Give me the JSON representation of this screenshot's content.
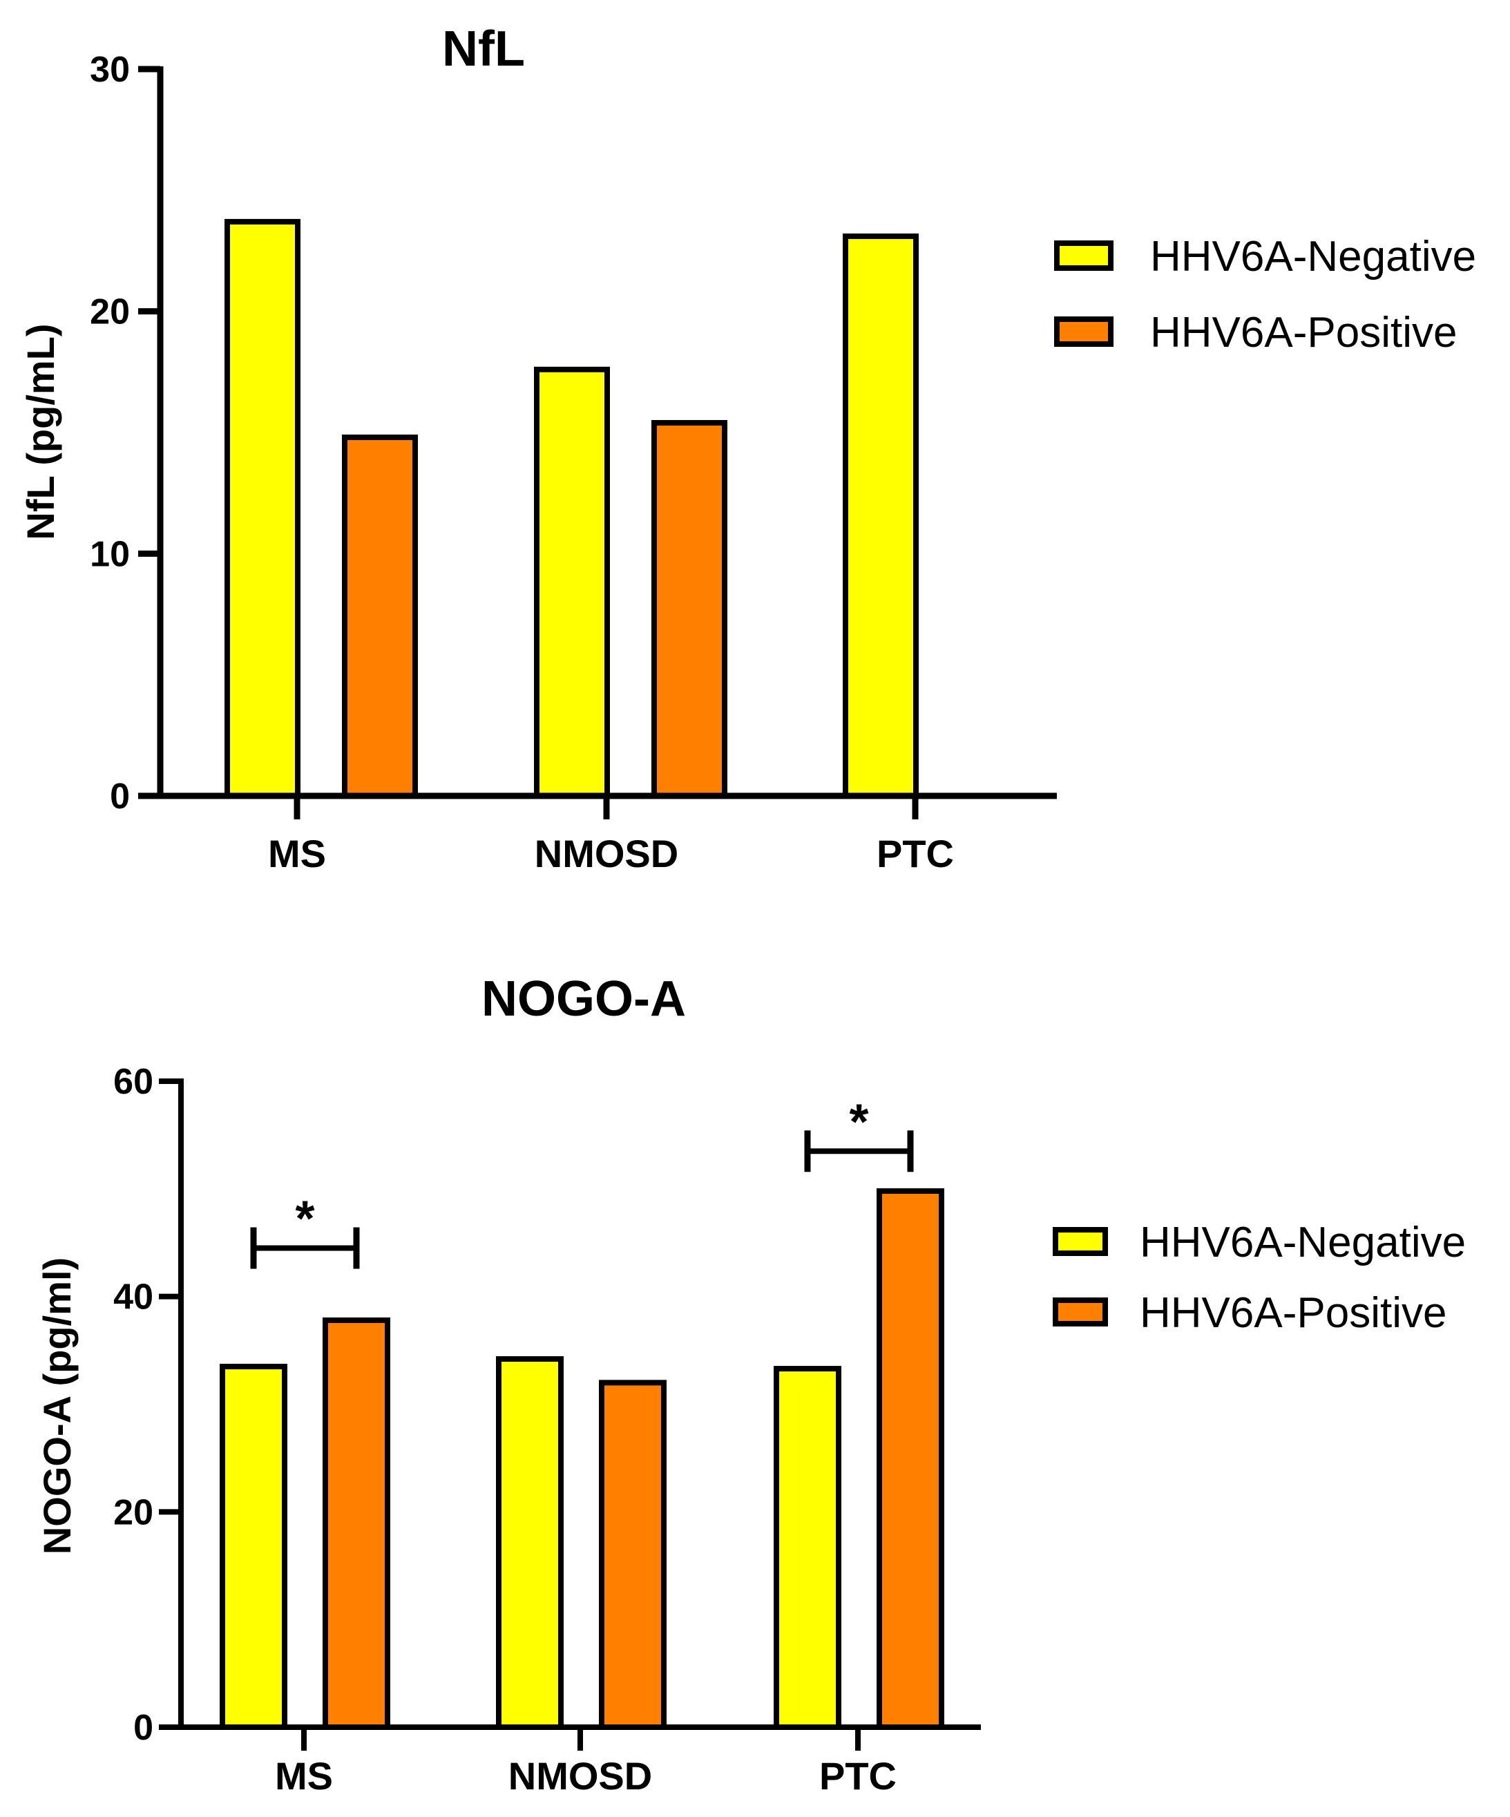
{
  "chart_data": [
    {
      "type": "bar",
      "title": "NfL",
      "xlabel": "",
      "ylabel": "NfL (pg/mL)",
      "ylim": [
        0,
        30
      ],
      "yticks": [
        0,
        10,
        20,
        30
      ],
      "categories": [
        "MS",
        "NMOSD",
        "PTC"
      ],
      "series": [
        {
          "name": "HHV6A-Negative",
          "color": "#FFFF00",
          "values": [
            23.7,
            17.6,
            23.1
          ]
        },
        {
          "name": "HHV6A-Positive",
          "color": "#FF8000",
          "values": [
            14.8,
            15.4,
            null
          ]
        }
      ],
      "legend": "right",
      "significance": []
    },
    {
      "type": "bar",
      "title": "NOGO-A",
      "xlabel": "",
      "ylabel": "NOGO-A (pg/ml)",
      "ylim": [
        0,
        60
      ],
      "yticks": [
        0,
        20,
        40,
        60
      ],
      "categories": [
        "MS",
        "NMOSD",
        "PTC"
      ],
      "series": [
        {
          "name": "HHV6A-Negative",
          "color": "#FFFF00",
          "values": [
            33.5,
            34.2,
            33.3
          ]
        },
        {
          "name": "HHV6A-Positive",
          "color": "#FF8000",
          "values": [
            37.8,
            32.0,
            49.8
          ]
        }
      ],
      "legend": "right",
      "significance": [
        {
          "category": "MS",
          "label": "*",
          "level": 44.5
        },
        {
          "category": "PTC",
          "label": "*",
          "level": 53.5
        }
      ]
    }
  ]
}
